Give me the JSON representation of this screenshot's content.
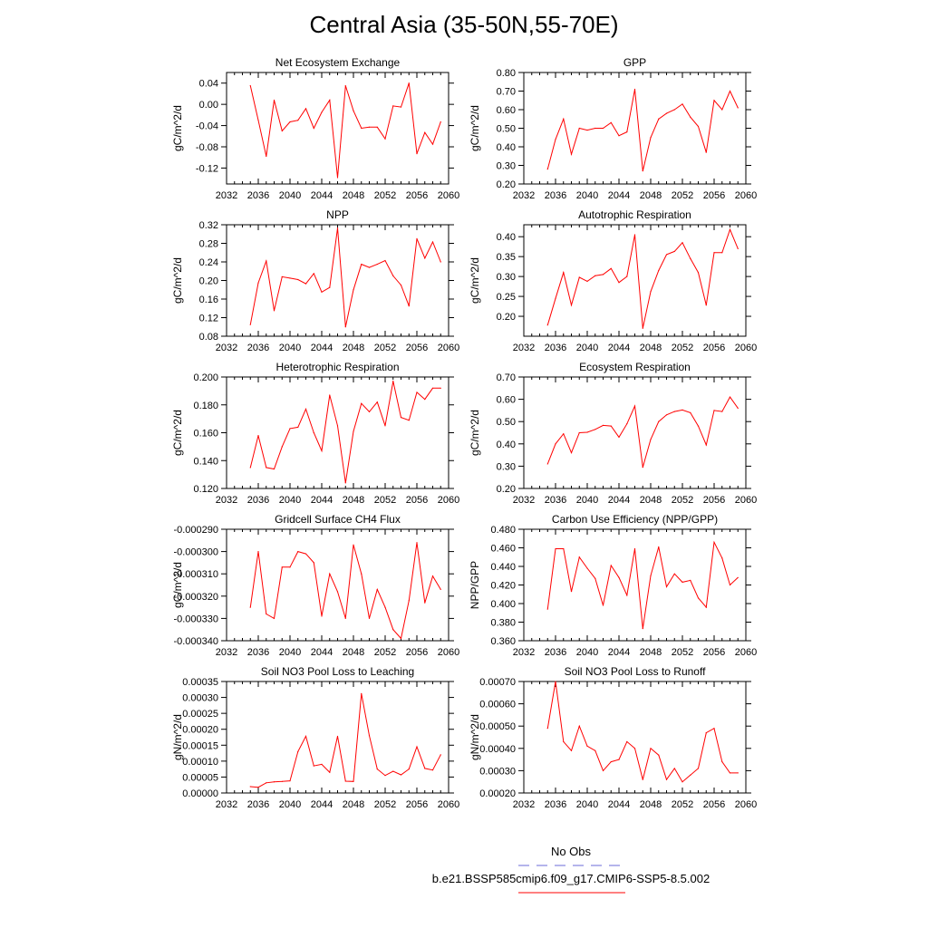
{
  "title": "Central Asia (35-50N,55-70E)",
  "legend": {
    "entries": [
      {
        "label": "No Obs",
        "style": "dashed",
        "color": "#6b6bd8"
      },
      {
        "label": "b.e21.BSSP585cmip6.f09_g17.CMIP6-SSP5-8.5.002",
        "style": "solid",
        "color": "#ff0000"
      }
    ]
  },
  "chart_data": [
    {
      "type": "line",
      "title": "Net Ecosystem Exchange",
      "ylabel": "gC/m^2/d",
      "xlim": [
        2032,
        2060
      ],
      "xticks": [
        "2032",
        "2036",
        "2040",
        "2044",
        "2048",
        "2052",
        "2056",
        "2060"
      ],
      "ylim": [
        -0.15,
        0.06
      ],
      "yticks": [
        "0.04",
        "0.00",
        "-0.04",
        "-0.08",
        "-0.12"
      ],
      "ytick_values": [
        0.04,
        0.0,
        -0.04,
        -0.08,
        -0.12
      ],
      "x": [
        2035,
        2036,
        2037,
        2038,
        2039,
        2040,
        2041,
        2042,
        2043,
        2044,
        2045,
        2046,
        2047,
        2048,
        2049,
        2050,
        2051,
        2052,
        2053,
        2054,
        2055,
        2056,
        2057,
        2058,
        2059
      ],
      "series": [
        {
          "color": "#ff0000",
          "values": [
            0.035,
            -0.03,
            -0.098,
            0.008,
            -0.05,
            -0.033,
            -0.03,
            -0.008,
            -0.045,
            -0.015,
            0.008,
            -0.138,
            0.035,
            -0.012,
            -0.045,
            -0.043,
            -0.043,
            -0.065,
            -0.003,
            -0.005,
            0.04,
            -0.093,
            -0.053,
            -0.075,
            -0.033
          ]
        }
      ]
    },
    {
      "type": "line",
      "title": "GPP",
      "ylabel": "gC/m^2/d",
      "xlim": [
        2032,
        2060
      ],
      "xticks": [
        "2032",
        "2036",
        "2040",
        "2044",
        "2048",
        "2052",
        "2056",
        "2060"
      ],
      "ylim": [
        0.2,
        0.8
      ],
      "yticks": [
        "0.80",
        "0.70",
        "0.60",
        "0.50",
        "0.40",
        "0.30",
        "0.20"
      ],
      "ytick_values": [
        0.8,
        0.7,
        0.6,
        0.5,
        0.4,
        0.3,
        0.2
      ],
      "x": [
        2035,
        2036,
        2037,
        2038,
        2039,
        2040,
        2041,
        2042,
        2043,
        2044,
        2045,
        2046,
        2047,
        2048,
        2049,
        2050,
        2051,
        2052,
        2053,
        2054,
        2055,
        2056,
        2057,
        2058,
        2059
      ],
      "series": [
        {
          "color": "#ff0000",
          "values": [
            0.28,
            0.44,
            0.55,
            0.36,
            0.5,
            0.49,
            0.5,
            0.5,
            0.53,
            0.46,
            0.48,
            0.71,
            0.27,
            0.45,
            0.55,
            0.58,
            0.6,
            0.63,
            0.56,
            0.51,
            0.37,
            0.65,
            0.6,
            0.7,
            0.61
          ]
        }
      ]
    },
    {
      "type": "line",
      "title": "NPP",
      "ylabel": "gC/m^2/d",
      "xlim": [
        2032,
        2060
      ],
      "xticks": [
        "2032",
        "2036",
        "2040",
        "2044",
        "2048",
        "2052",
        "2056",
        "2060"
      ],
      "ylim": [
        0.08,
        0.32
      ],
      "yticks": [
        "0.32",
        "0.28",
        "0.24",
        "0.20",
        "0.16",
        "0.12",
        "0.08"
      ],
      "ytick_values": [
        0.32,
        0.28,
        0.24,
        0.2,
        0.16,
        0.12,
        0.08
      ],
      "x": [
        2035,
        2036,
        2037,
        2038,
        2039,
        2040,
        2041,
        2042,
        2043,
        2044,
        2045,
        2046,
        2047,
        2048,
        2049,
        2050,
        2051,
        2052,
        2053,
        2054,
        2055,
        2056,
        2057,
        2058,
        2059
      ],
      "series": [
        {
          "color": "#ff0000",
          "values": [
            0.105,
            0.195,
            0.242,
            0.135,
            0.208,
            0.205,
            0.202,
            0.193,
            0.215,
            0.175,
            0.185,
            0.313,
            0.1,
            0.18,
            0.235,
            0.228,
            0.235,
            0.243,
            0.21,
            0.19,
            0.145,
            0.29,
            0.248,
            0.283,
            0.24
          ]
        }
      ]
    },
    {
      "type": "line",
      "title": "Autotrophic Respiration",
      "ylabel": "gC/m^2/d",
      "xlim": [
        2032,
        2060
      ],
      "xticks": [
        "2032",
        "2036",
        "2040",
        "2044",
        "2048",
        "2052",
        "2056",
        "2060"
      ],
      "ylim": [
        0.15,
        0.43
      ],
      "yticks": [
        "0.40",
        "0.35",
        "0.30",
        "0.25",
        "0.20"
      ],
      "ytick_values": [
        0.4,
        0.35,
        0.3,
        0.25,
        0.2
      ],
      "x": [
        2035,
        2036,
        2037,
        2038,
        2039,
        2040,
        2041,
        2042,
        2043,
        2044,
        2045,
        2046,
        2047,
        2048,
        2049,
        2050,
        2051,
        2052,
        2053,
        2054,
        2055,
        2056,
        2057,
        2058,
        2059
      ],
      "series": [
        {
          "color": "#ff0000",
          "values": [
            0.178,
            0.245,
            0.31,
            0.228,
            0.298,
            0.288,
            0.302,
            0.305,
            0.32,
            0.285,
            0.3,
            0.405,
            0.17,
            0.262,
            0.315,
            0.355,
            0.363,
            0.385,
            0.345,
            0.31,
            0.228,
            0.36,
            0.36,
            0.418,
            0.37
          ]
        }
      ]
    },
    {
      "type": "line",
      "title": "Heterotrophic Respiration",
      "ylabel": "gC/m^2/d",
      "xlim": [
        2032,
        2060
      ],
      "xticks": [
        "2032",
        "2036",
        "2040",
        "2044",
        "2048",
        "2052",
        "2056",
        "2060"
      ],
      "ylim": [
        0.12,
        0.2
      ],
      "yticks": [
        "0.200",
        "0.180",
        "0.160",
        "0.140",
        "0.120"
      ],
      "ytick_values": [
        0.2,
        0.18,
        0.16,
        0.14,
        0.12
      ],
      "x": [
        2035,
        2036,
        2037,
        2038,
        2039,
        2040,
        2041,
        2042,
        2043,
        2044,
        2045,
        2046,
        2047,
        2048,
        2049,
        2050,
        2051,
        2052,
        2053,
        2054,
        2055,
        2056,
        2057,
        2058,
        2059
      ],
      "series": [
        {
          "color": "#ff0000",
          "values": [
            0.135,
            0.158,
            0.135,
            0.134,
            0.15,
            0.163,
            0.164,
            0.177,
            0.16,
            0.147,
            0.187,
            0.165,
            0.124,
            0.161,
            0.181,
            0.175,
            0.182,
            0.165,
            0.197,
            0.171,
            0.169,
            0.189,
            0.184,
            0.192,
            0.192
          ]
        }
      ]
    },
    {
      "type": "line",
      "title": "Ecosystem Respiration",
      "ylabel": "gC/m^2/d",
      "xlim": [
        2032,
        2060
      ],
      "xticks": [
        "2032",
        "2036",
        "2040",
        "2044",
        "2048",
        "2052",
        "2056",
        "2060"
      ],
      "ylim": [
        0.2,
        0.7
      ],
      "yticks": [
        "0.70",
        "0.60",
        "0.50",
        "0.40",
        "0.30",
        "0.20"
      ],
      "ytick_values": [
        0.7,
        0.6,
        0.5,
        0.4,
        0.3,
        0.2
      ],
      "x": [
        2035,
        2036,
        2037,
        2038,
        2039,
        2040,
        2041,
        2042,
        2043,
        2044,
        2045,
        2046,
        2047,
        2048,
        2049,
        2050,
        2051,
        2052,
        2053,
        2054,
        2055,
        2056,
        2057,
        2058,
        2059
      ],
      "series": [
        {
          "color": "#ff0000",
          "values": [
            0.31,
            0.4,
            0.445,
            0.36,
            0.45,
            0.452,
            0.465,
            0.483,
            0.48,
            0.43,
            0.49,
            0.57,
            0.295,
            0.42,
            0.5,
            0.53,
            0.545,
            0.552,
            0.54,
            0.48,
            0.395,
            0.55,
            0.545,
            0.61,
            0.56
          ]
        }
      ]
    },
    {
      "type": "line",
      "title": "Gridcell Surface CH4 Flux",
      "ylabel": "gC/m^2/d",
      "xlim": [
        2032,
        2060
      ],
      "xticks": [
        "2032",
        "2036",
        "2040",
        "2044",
        "2048",
        "2052",
        "2056",
        "2060"
      ],
      "ylim": [
        -0.00034,
        -0.00029
      ],
      "yticks": [
        "-0.000290",
        "-0.000300",
        "-0.000310",
        "-0.000320",
        "-0.000330",
        "-0.000340"
      ],
      "ytick_values": [
        -0.00029,
        -0.0003,
        -0.00031,
        -0.00032,
        -0.00033,
        -0.00034
      ],
      "x": [
        2035,
        2036,
        2037,
        2038,
        2039,
        2040,
        2041,
        2042,
        2043,
        2044,
        2045,
        2046,
        2047,
        2048,
        2049,
        2050,
        2051,
        2052,
        2053,
        2054,
        2055,
        2056,
        2057,
        2058,
        2059
      ],
      "series": [
        {
          "color": "#ff0000",
          "values": [
            -0.000325,
            -0.0003,
            -0.000328,
            -0.00033,
            -0.000307,
            -0.000307,
            -0.0003,
            -0.000301,
            -0.000305,
            -0.000329,
            -0.00031,
            -0.000318,
            -0.00033,
            -0.000297,
            -0.00031,
            -0.00033,
            -0.000317,
            -0.000325,
            -0.000335,
            -0.000339,
            -0.000322,
            -0.000296,
            -0.000323,
            -0.000311,
            -0.000317
          ]
        }
      ]
    },
    {
      "type": "line",
      "title": "Carbon Use Efficiency (NPP/GPP)",
      "ylabel": "NPP/GPP",
      "xlim": [
        2032,
        2060
      ],
      "xticks": [
        "2032",
        "2036",
        "2040",
        "2044",
        "2048",
        "2052",
        "2056",
        "2060"
      ],
      "ylim": [
        0.36,
        0.48
      ],
      "yticks": [
        "0.480",
        "0.460",
        "0.440",
        "0.420",
        "0.400",
        "0.380",
        "0.360"
      ],
      "ytick_values": [
        0.48,
        0.46,
        0.44,
        0.42,
        0.4,
        0.38,
        0.36
      ],
      "x": [
        2035,
        2036,
        2037,
        2038,
        2039,
        2040,
        2041,
        2042,
        2043,
        2044,
        2045,
        2046,
        2047,
        2048,
        2049,
        2050,
        2051,
        2052,
        2053,
        2054,
        2055,
        2056,
        2057,
        2058,
        2059
      ],
      "series": [
        {
          "color": "#ff0000",
          "values": [
            0.394,
            0.459,
            0.459,
            0.413,
            0.45,
            0.438,
            0.427,
            0.398,
            0.441,
            0.428,
            0.409,
            0.459,
            0.373,
            0.43,
            0.461,
            0.418,
            0.432,
            0.423,
            0.425,
            0.406,
            0.396,
            0.466,
            0.449,
            0.42,
            0.428
          ]
        }
      ]
    },
    {
      "type": "line",
      "title": "Soil NO3 Pool Loss to Leaching",
      "ylabel": "gN/m^2/d",
      "xlim": [
        2032,
        2060
      ],
      "xticks": [
        "2032",
        "2036",
        "2040",
        "2044",
        "2048",
        "2052",
        "2056",
        "2060"
      ],
      "ylim": [
        0.0,
        0.00035
      ],
      "yticks": [
        "0.00035",
        "0.00030",
        "0.00025",
        "0.00020",
        "0.00015",
        "0.00010",
        "0.00005",
        "0.00000"
      ],
      "ytick_values": [
        0.00035,
        0.0003,
        0.00025,
        0.0002,
        0.00015,
        0.0001,
        5e-05,
        0.0
      ],
      "x": [
        2035,
        2036,
        2037,
        2038,
        2039,
        2040,
        2041,
        2042,
        2043,
        2044,
        2045,
        2046,
        2047,
        2048,
        2049,
        2050,
        2051,
        2052,
        2053,
        2054,
        2055,
        2056,
        2057,
        2058,
        2059
      ],
      "series": [
        {
          "color": "#ff0000",
          "values": [
            2e-05,
            1.8e-05,
            3.2e-05,
            3.5e-05,
            3.6e-05,
            3.8e-05,
            0.00013,
            0.000178,
            8.5e-05,
            9e-05,
            6.5e-05,
            0.000178,
            3.7e-05,
            3.6e-05,
            0.000312,
            0.00018,
            7.5e-05,
            5.5e-05,
            6.8e-05,
            5.7e-05,
            7.5e-05,
            0.000145,
            7.7e-05,
            7.2e-05,
            0.00012
          ]
        }
      ]
    },
    {
      "type": "line",
      "title": "Soil NO3 Pool Loss to Runoff",
      "ylabel": "gN/m^2/d",
      "xlim": [
        2032,
        2060
      ],
      "xticks": [
        "2032",
        "2036",
        "2040",
        "2044",
        "2048",
        "2052",
        "2056",
        "2060"
      ],
      "ylim": [
        0.0002,
        0.0007
      ],
      "yticks": [
        "0.00070",
        "0.00060",
        "0.00050",
        "0.00040",
        "0.00030",
        "0.00020"
      ],
      "ytick_values": [
        0.0007,
        0.0006,
        0.0005,
        0.0004,
        0.0003,
        0.0002
      ],
      "x": [
        2035,
        2036,
        2037,
        2038,
        2039,
        2040,
        2041,
        2042,
        2043,
        2044,
        2045,
        2046,
        2047,
        2048,
        2049,
        2050,
        2051,
        2052,
        2053,
        2054,
        2055,
        2056,
        2057,
        2058,
        2059
      ],
      "series": [
        {
          "color": "#ff0000",
          "values": [
            0.00049,
            0.0007,
            0.00043,
            0.00039,
            0.0005,
            0.00041,
            0.00039,
            0.0003,
            0.00034,
            0.00035,
            0.00043,
            0.0004,
            0.00026,
            0.0004,
            0.00037,
            0.00026,
            0.00031,
            0.00025,
            0.00028,
            0.00031,
            0.00047,
            0.00049,
            0.00034,
            0.00029,
            0.00029
          ]
        }
      ]
    }
  ]
}
